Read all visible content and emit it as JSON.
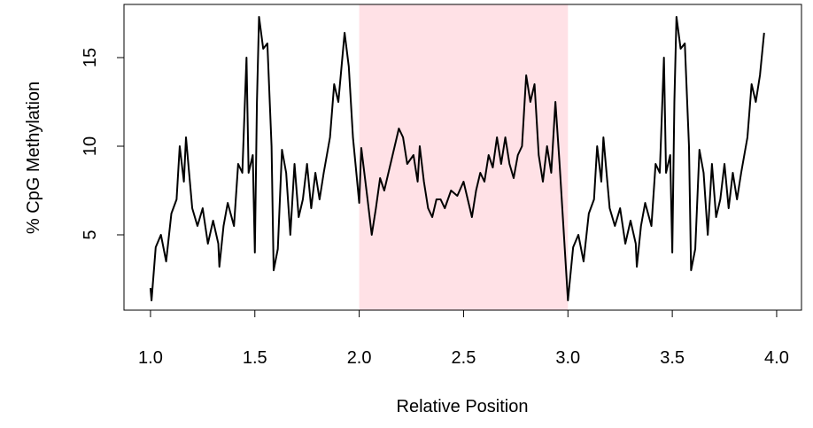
{
  "chart_data": {
    "type": "line",
    "xlabel": "Relative Position",
    "ylabel": "% CpG Methylation",
    "color": "#000000",
    "shade_color": "#ffe1e6",
    "shaded_region": [
      2,
      3
    ],
    "xlim": [
      0.873,
      4.119
    ],
    "ylim": [
      0.75,
      18
    ],
    "xticks": [
      {
        "value": 1,
        "label": "1.0"
      },
      {
        "value": 1.5,
        "label": "1.5"
      },
      {
        "value": 2,
        "label": "2.0"
      },
      {
        "value": 2.5,
        "label": "2.5"
      },
      {
        "value": 3,
        "label": "3.0"
      },
      {
        "value": 3.5,
        "label": "3.5"
      },
      {
        "value": 4,
        "label": "4.0"
      }
    ],
    "yticks": [
      5,
      10,
      15
    ],
    "x": [
      1.0,
      1.005,
      1.025,
      1.05,
      1.075,
      1.1,
      1.125,
      1.14,
      1.16,
      1.17,
      1.2,
      1.225,
      1.25,
      1.275,
      1.3,
      1.325,
      1.33,
      1.35,
      1.37,
      1.4,
      1.42,
      1.44,
      1.46,
      1.47,
      1.49,
      1.5,
      1.51,
      1.52,
      1.54,
      1.56,
      1.58,
      1.59,
      1.61,
      1.63,
      1.65,
      1.67,
      1.69,
      1.71,
      1.73,
      1.75,
      1.77,
      1.79,
      1.81,
      1.83,
      1.86,
      1.88,
      1.9,
      1.93,
      1.95,
      1.97,
      2.0,
      2.01,
      2.04,
      2.06,
      2.08,
      2.1,
      2.12,
      2.15,
      2.17,
      2.19,
      2.21,
      2.23,
      2.26,
      2.28,
      2.29,
      2.31,
      2.33,
      2.35,
      2.37,
      2.39,
      2.41,
      2.44,
      2.47,
      2.5,
      2.52,
      2.54,
      2.56,
      2.58,
      2.6,
      2.62,
      2.64,
      2.66,
      2.68,
      2.7,
      2.72,
      2.74,
      2.76,
      2.78,
      2.8,
      2.82,
      2.84,
      2.86,
      2.88,
      2.9,
      2.92,
      2.94,
      2.96,
      3.0,
      3.025,
      3.05,
      3.075,
      3.1,
      3.125,
      3.14,
      3.16,
      3.17,
      3.2,
      3.225,
      3.25,
      3.275,
      3.3,
      3.325,
      3.33,
      3.35,
      3.37,
      3.4,
      3.42,
      3.44,
      3.46,
      3.47,
      3.49,
      3.5,
      3.51,
      3.52,
      3.54,
      3.56,
      3.58,
      3.59,
      3.61,
      3.63,
      3.65,
      3.67,
      3.69,
      3.71,
      3.73,
      3.75,
      3.77,
      3.79,
      3.81,
      3.83,
      3.86,
      3.88,
      3.9,
      3.92,
      3.94
    ],
    "values": [
      2.0,
      1.3,
      4.3,
      5.0,
      3.5,
      6.2,
      7.0,
      10.0,
      8.0,
      10.5,
      6.5,
      5.5,
      6.5,
      4.5,
      5.8,
      4.5,
      3.2,
      5.5,
      6.8,
      5.5,
      9.0,
      8.5,
      15.0,
      8.5,
      9.5,
      4.0,
      12.5,
      17.3,
      15.5,
      15.8,
      10.0,
      3.0,
      4.2,
      9.8,
      8.5,
      5.0,
      9.0,
      6.0,
      7.0,
      9.0,
      6.5,
      8.5,
      7.0,
      8.5,
      10.5,
      13.5,
      12.5,
      16.4,
      14.5,
      10.5,
      6.8,
      9.9,
      7.0,
      5.0,
      6.5,
      8.2,
      7.5,
      9.0,
      10.0,
      11.0,
      10.5,
      9.0,
      9.5,
      8.0,
      10.0,
      8.0,
      6.5,
      6.0,
      7.0,
      7.0,
      6.5,
      7.5,
      7.2,
      8.0,
      7.0,
      6.0,
      7.5,
      8.5,
      8.0,
      9.5,
      8.8,
      10.5,
      9.0,
      10.5,
      9.0,
      8.2,
      9.5,
      10.0,
      14.0,
      12.5,
      13.5,
      9.5,
      8.0,
      10.0,
      8.5,
      12.5,
      9.0,
      1.3,
      4.3,
      5.0,
      3.5,
      6.2,
      7.0,
      10.0,
      8.0,
      10.5,
      6.5,
      5.5,
      6.5,
      4.5,
      5.8,
      4.5,
      3.2,
      5.5,
      6.8,
      5.5,
      9.0,
      8.5,
      15.0,
      8.5,
      9.5,
      4.0,
      12.5,
      17.3,
      15.5,
      15.8,
      10.0,
      3.0,
      4.2,
      9.8,
      8.5,
      5.0,
      9.0,
      6.0,
      7.0,
      9.0,
      6.5,
      8.5,
      7.0,
      8.5,
      10.5,
      13.5,
      12.5,
      14.0,
      16.4
    ]
  }
}
